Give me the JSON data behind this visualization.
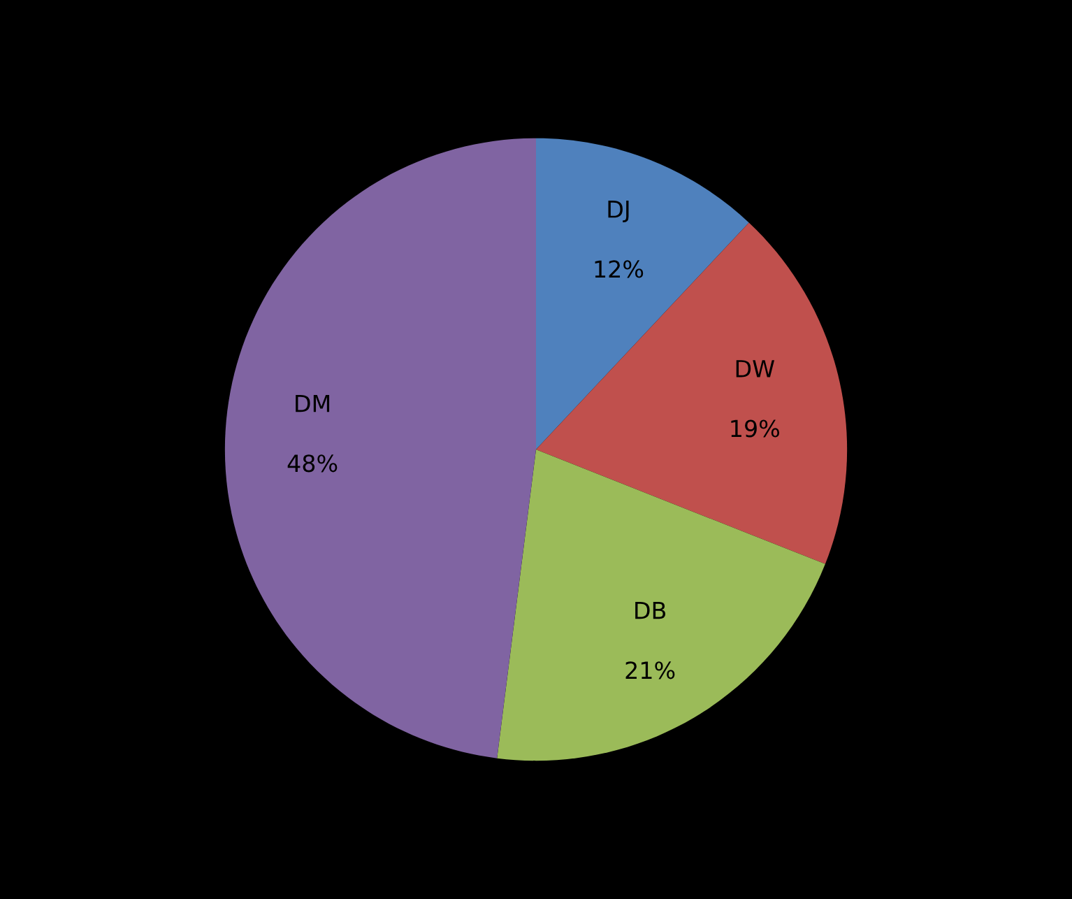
{
  "chart_data": {
    "type": "pie",
    "categories": [
      "DJ",
      "DW",
      "DB",
      "DM"
    ],
    "values": [
      12,
      19,
      21,
      48
    ],
    "colors": [
      "#4f81bd",
      "#c0504d",
      "#9bbb59",
      "#8064a2"
    ],
    "value_labels": [
      "12%",
      "19%",
      "21%",
      "48%"
    ],
    "legend": false
  }
}
